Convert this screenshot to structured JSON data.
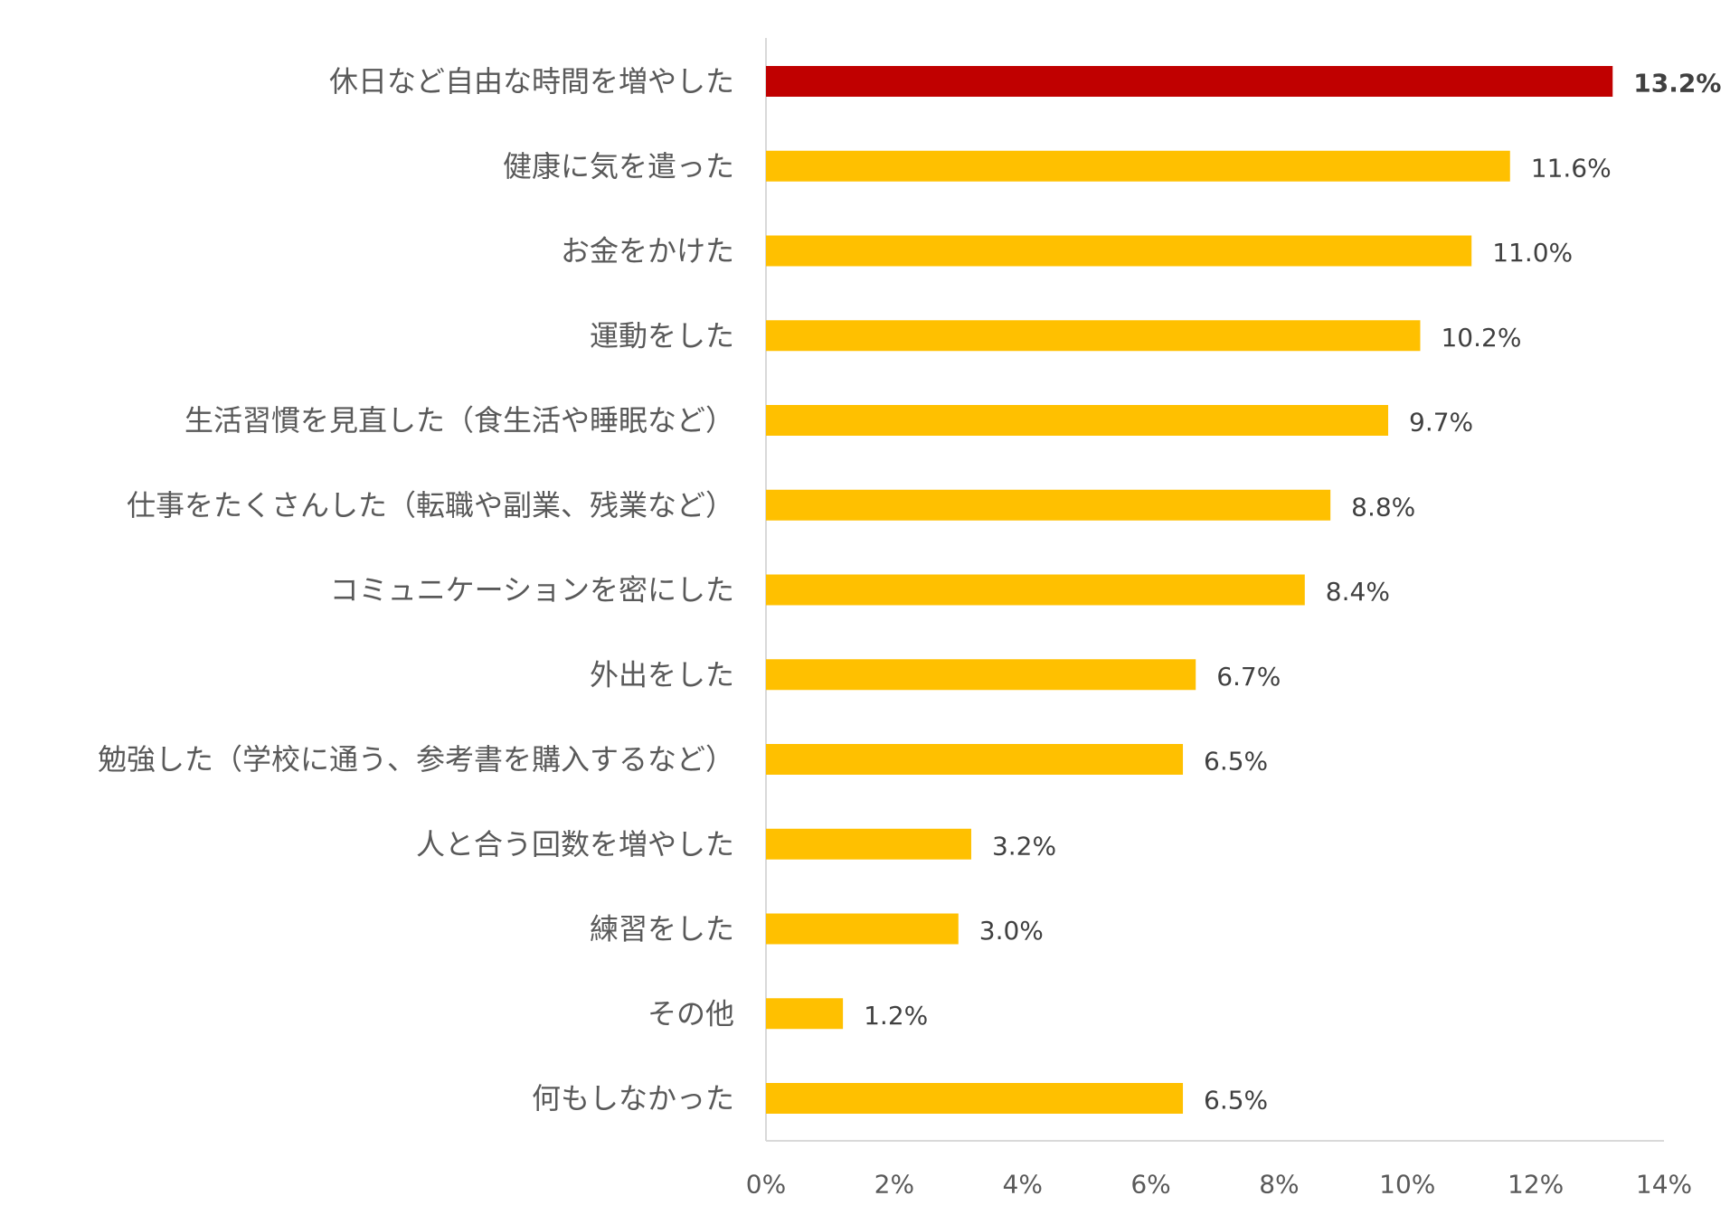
{
  "chart_data": {
    "type": "bar",
    "orientation": "horizontal",
    "title": "",
    "xlabel": "",
    "ylabel": "",
    "xlim": [
      0,
      14
    ],
    "x_ticks": [
      0,
      2,
      4,
      6,
      8,
      10,
      12,
      14
    ],
    "x_tick_labels": [
      "0%",
      "2%",
      "4%",
      "6%",
      "8%",
      "10%",
      "12%",
      "14%"
    ],
    "grid": false,
    "legend": "none",
    "categories": [
      "休日など自由な時間を増やした",
      "健康に気を遣った",
      "お金をかけた",
      "運動をした",
      "生活習慣を見直した（食生活や睡眠など）",
      "仕事をたくさんした（転職や副業、残業など）",
      "コミュニケーションを密にした",
      "外出をした",
      "勉強した（学校に通う、参考書を購入するなど）",
      "人と合う回数を増やした",
      "練習をした",
      "その他",
      "何もしなかった"
    ],
    "values": [
      13.2,
      11.6,
      11.0,
      10.2,
      9.7,
      8.8,
      8.4,
      6.7,
      6.5,
      3.2,
      3.0,
      1.2,
      6.5
    ],
    "value_labels": [
      "13.2%",
      "11.6%",
      "11.0%",
      "10.2%",
      "9.7%",
      "8.8%",
      "8.4%",
      "6.7%",
      "6.5%",
      "3.2%",
      "3.0%",
      "1.2%",
      "6.5%"
    ],
    "highlight_index": 0,
    "colors": {
      "bar": "#FFC000",
      "highlight": "#C00000",
      "axis": "#D9D9D9",
      "category_text": "#595959",
      "value_text": "#404040",
      "tick_text": "#595959"
    }
  }
}
